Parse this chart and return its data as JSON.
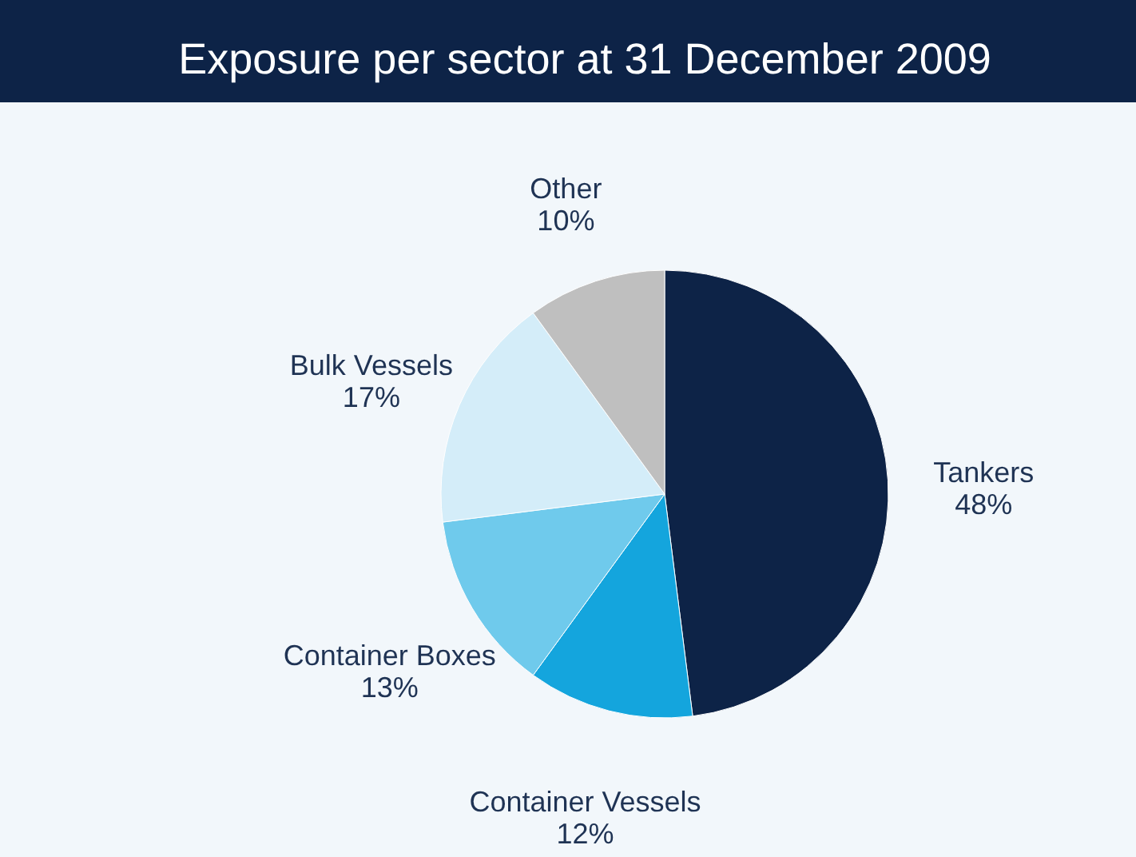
{
  "chart_data": {
    "type": "pie",
    "title": "Exposure per sector at 31 December 2009",
    "categories": [
      "Tankers",
      "Container Vessels",
      "Container Boxes",
      "Bulk Vessels",
      "Other"
    ],
    "values": [
      48,
      12,
      13,
      17,
      10
    ],
    "value_labels": [
      "48%",
      "12%",
      "13%",
      "17%",
      "10%"
    ],
    "colors": [
      "#0d2347",
      "#14a5dd",
      "#6fcaec",
      "#d4edf9",
      "#bfbfbf"
    ],
    "legend": false
  }
}
